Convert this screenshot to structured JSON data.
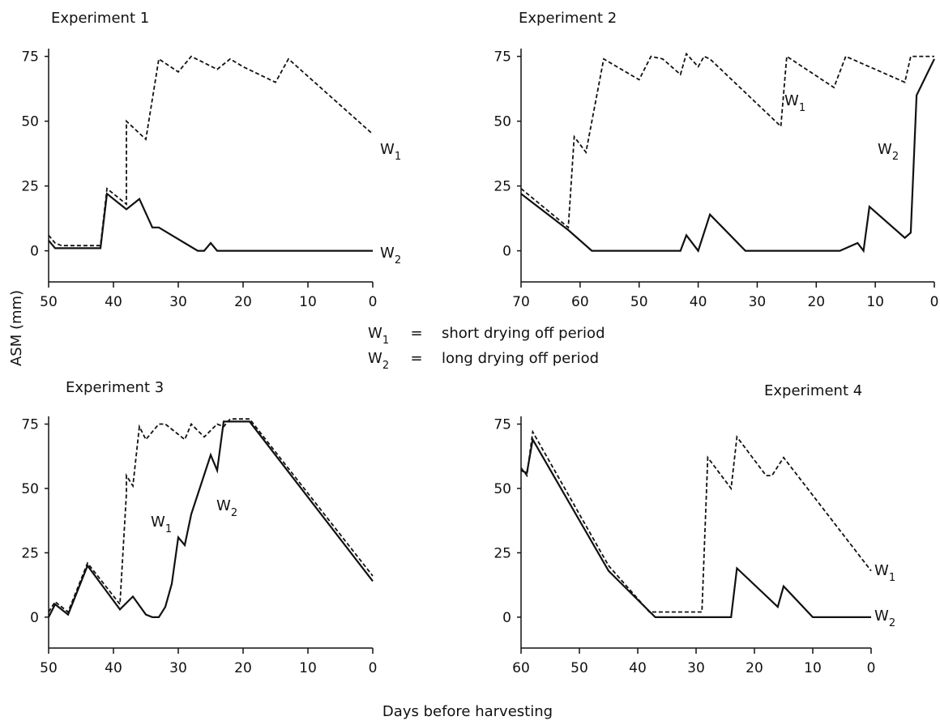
{
  "ylabel": "ASM  (mm)",
  "xlabel": "Days before harvesting",
  "legend": [
    {
      "symbol": "W",
      "sub": "1",
      "eq": "=",
      "desc": "short drying off period"
    },
    {
      "symbol": "W",
      "sub": "2",
      "eq": "=",
      "desc": "long drying off period"
    }
  ],
  "chart_data": [
    {
      "type": "line",
      "title": "Experiment 1",
      "xlabel": "Days before harvesting",
      "ylabel": "ASM  (mm)",
      "xlim": [
        50,
        0
      ],
      "ylim": [
        -12,
        78
      ],
      "xticks": [
        50,
        40,
        30,
        20,
        10,
        0
      ],
      "yticks": [
        0,
        25,
        50,
        75
      ],
      "series": [
        {
          "name": "W1",
          "style": "dashed",
          "x": [
            50,
            49,
            48,
            42,
            41,
            38,
            38,
            35,
            33,
            30,
            28,
            24,
            22,
            20,
            15,
            13,
            0
          ],
          "y": [
            6,
            3,
            2,
            2,
            24,
            18,
            50,
            43,
            74,
            69,
            75,
            70,
            74,
            71,
            65,
            74,
            45
          ]
        },
        {
          "name": "W2",
          "style": "solid",
          "x": [
            50,
            49,
            48,
            42,
            41,
            38,
            36,
            34,
            33,
            27,
            26,
            25,
            24,
            22,
            0
          ],
          "y": [
            4,
            1,
            1,
            1,
            22,
            16,
            20,
            9,
            9,
            0,
            0,
            3,
            0,
            0,
            0
          ]
        }
      ]
    },
    {
      "type": "line",
      "title": "Experiment 2",
      "xlabel": "Days before harvesting",
      "ylabel": "ASM  (mm)",
      "xlim": [
        70,
        0
      ],
      "ylim": [
        -12,
        78
      ],
      "xticks": [
        70,
        60,
        50,
        40,
        30,
        20,
        10,
        0
      ],
      "yticks": [
        0,
        25,
        50,
        75
      ],
      "series": [
        {
          "name": "W1",
          "style": "dashed",
          "x": [
            70,
            62,
            61,
            59,
            56,
            50,
            48,
            46,
            43,
            42,
            40,
            39,
            38,
            26,
            25,
            17,
            15,
            5,
            4,
            0
          ],
          "y": [
            24,
            9,
            44,
            38,
            74,
            66,
            75,
            74,
            68,
            76,
            71,
            75,
            74,
            48,
            75,
            63,
            75,
            65,
            75,
            75
          ]
        },
        {
          "name": "W2",
          "style": "solid",
          "x": [
            70,
            62,
            58,
            43,
            42,
            40,
            38,
            32,
            16,
            13,
            12,
            11,
            5,
            4,
            3,
            0
          ],
          "y": [
            22,
            8,
            0,
            0,
            6,
            0,
            14,
            0,
            0,
            3,
            0,
            17,
            5,
            7,
            60,
            74
          ]
        }
      ]
    },
    {
      "type": "line",
      "title": "Experiment 3",
      "xlabel": "Days before harvesting",
      "ylabel": "ASM  (mm)",
      "xlim": [
        50,
        0
      ],
      "ylim": [
        -12,
        78
      ],
      "xticks": [
        50,
        40,
        30,
        20,
        10,
        0
      ],
      "yticks": [
        0,
        25,
        50,
        75
      ],
      "series": [
        {
          "name": "W1",
          "style": "dashed",
          "x": [
            50,
            49,
            47,
            44,
            39,
            38,
            38,
            37,
            36,
            35,
            33,
            32,
            29,
            28,
            26,
            24,
            23,
            22,
            19,
            0
          ],
          "y": [
            2,
            6,
            2,
            21,
            5,
            48,
            55,
            51,
            74,
            69,
            75,
            75,
            69,
            75,
            70,
            75,
            74,
            77,
            77,
            16
          ]
        },
        {
          "name": "W2",
          "style": "solid",
          "x": [
            50,
            49,
            47,
            44,
            39,
            37,
            35,
            34,
            33,
            32,
            31,
            30,
            29,
            28,
            25,
            24,
            23,
            22,
            19,
            0
          ],
          "y": [
            0,
            5,
            1,
            20,
            3,
            8,
            1,
            0,
            0,
            4,
            13,
            31,
            28,
            40,
            63,
            57,
            76,
            76,
            76,
            14
          ]
        }
      ]
    },
    {
      "type": "line",
      "title": "Experiment 4",
      "xlabel": "Days before harvesting",
      "ylabel": "ASM  (mm)",
      "xlim": [
        60,
        0
      ],
      "ylim": [
        -12,
        78
      ],
      "xticks": [
        60,
        50,
        40,
        30,
        20,
        10,
        0
      ],
      "yticks": [
        0,
        25,
        50,
        75
      ],
      "series": [
        {
          "name": "W1",
          "style": "dashed",
          "x": [
            60,
            59,
            58,
            45,
            38,
            29,
            28,
            24,
            23,
            18,
            17,
            15,
            0
          ],
          "y": [
            58,
            55,
            72,
            20,
            2,
            2,
            62,
            50,
            70,
            55,
            55,
            62,
            18
          ]
        },
        {
          "name": "W2",
          "style": "solid",
          "x": [
            60,
            59,
            58,
            45,
            37,
            24,
            23,
            16,
            15,
            10,
            0
          ],
          "y": [
            57,
            56,
            69,
            18,
            0,
            0,
            19,
            4,
            12,
            0,
            0
          ]
        }
      ]
    }
  ]
}
